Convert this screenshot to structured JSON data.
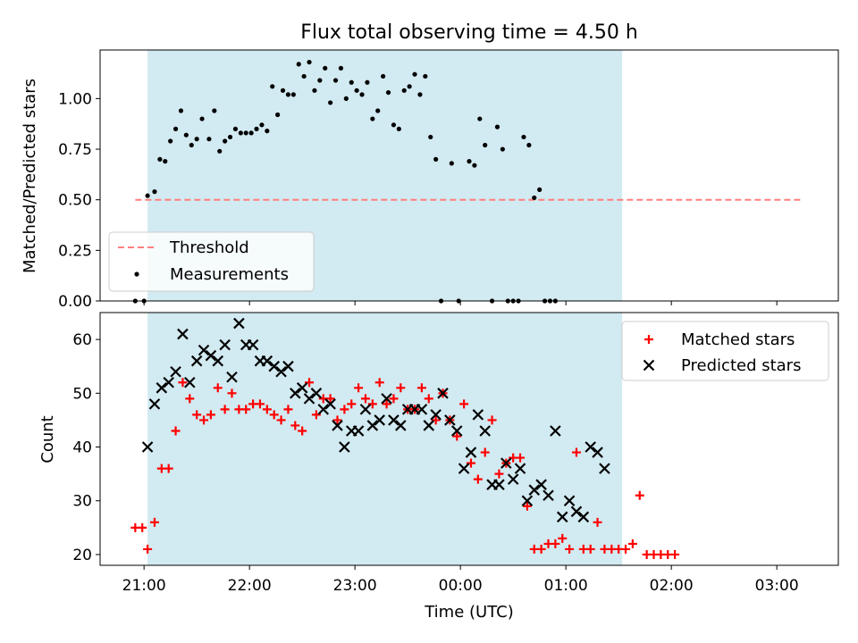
{
  "title": "Flux total observing time = 4.50 h",
  "colors": {
    "band": "#add8e6",
    "threshold": "#ff7f7f",
    "measurement": "#000000",
    "matched": "#ff0000",
    "predicted": "#000000"
  },
  "chart_data": [
    {
      "type": "scatter",
      "ylabel": "Matched/Predicted stars",
      "ylim": [
        0,
        1.24
      ],
      "yticks": [
        0.0,
        0.25,
        0.5,
        0.75,
        1.0
      ],
      "ytick_labels": [
        "0.00",
        "0.25",
        "0.50",
        "0.75",
        "1.00"
      ],
      "xlim": [
        "20:35",
        "03:35"
      ],
      "shaded_interval": [
        "21:02",
        "01:32"
      ],
      "legend_position": "lower-left",
      "threshold": {
        "name": "Threshold",
        "y": 0.5,
        "x": [
          "20:55",
          "03:15"
        ],
        "style": "dashed"
      },
      "series": [
        {
          "name": "Measurements",
          "points": [
            [
              "20:55",
              0.0
            ],
            [
              "21:00",
              0.0
            ],
            [
              "21:02",
              0.52
            ],
            [
              "21:06",
              0.54
            ],
            [
              "21:09",
              0.7
            ],
            [
              "21:12",
              0.69
            ],
            [
              "21:15",
              0.79
            ],
            [
              "21:18",
              0.85
            ],
            [
              "21:21",
              0.94
            ],
            [
              "21:24",
              0.82
            ],
            [
              "21:27",
              0.77
            ],
            [
              "21:30",
              0.8
            ],
            [
              "21:33",
              0.9
            ],
            [
              "21:37",
              0.8
            ],
            [
              "21:40",
              0.94
            ],
            [
              "21:43",
              0.74
            ],
            [
              "21:46",
              0.79
            ],
            [
              "21:49",
              0.81
            ],
            [
              "21:52",
              0.85
            ],
            [
              "21:55",
              0.83
            ],
            [
              "21:58",
              0.83
            ],
            [
              "22:01",
              0.83
            ],
            [
              "22:04",
              0.85
            ],
            [
              "22:07",
              0.87
            ],
            [
              "22:10",
              0.84
            ],
            [
              "22:13",
              1.06
            ],
            [
              "22:16",
              0.92
            ],
            [
              "22:19",
              1.04
            ],
            [
              "22:22",
              1.02
            ],
            [
              "22:25",
              1.02
            ],
            [
              "22:28",
              1.17
            ],
            [
              "22:31",
              1.11
            ],
            [
              "22:34",
              1.18
            ],
            [
              "22:37",
              1.04
            ],
            [
              "22:40",
              1.09
            ],
            [
              "22:43",
              1.15
            ],
            [
              "22:46",
              0.98
            ],
            [
              "22:49",
              1.09
            ],
            [
              "22:52",
              1.15
            ],
            [
              "22:55",
              1.0
            ],
            [
              "22:58",
              1.08
            ],
            [
              "23:01",
              1.04
            ],
            [
              "23:04",
              1.02
            ],
            [
              "23:07",
              1.08
            ],
            [
              "23:10",
              0.9
            ],
            [
              "23:13",
              0.94
            ],
            [
              "23:16",
              1.11
            ],
            [
              "23:19",
              1.03
            ],
            [
              "23:22",
              0.87
            ],
            [
              "23:25",
              0.85
            ],
            [
              "23:28",
              1.04
            ],
            [
              "23:31",
              1.06
            ],
            [
              "23:34",
              1.12
            ],
            [
              "23:37",
              1.02
            ],
            [
              "23:40",
              1.11
            ],
            [
              "23:43",
              0.81
            ],
            [
              "23:46",
              0.7
            ],
            [
              "23:49",
              0.0
            ],
            [
              "23:55",
              0.68
            ],
            [
              "23:59",
              0.0
            ],
            [
              "00:05",
              0.69
            ],
            [
              "00:08",
              0.67
            ],
            [
              "00:11",
              0.9
            ],
            [
              "00:14",
              0.77
            ],
            [
              "00:18",
              0.0
            ],
            [
              "00:21",
              0.86
            ],
            [
              "00:24",
              0.75
            ],
            [
              "00:27",
              0.0
            ],
            [
              "00:30",
              0.0
            ],
            [
              "00:33",
              0.0
            ],
            [
              "00:36",
              0.81
            ],
            [
              "00:39",
              0.77
            ],
            [
              "00:42",
              0.51
            ],
            [
              "00:45",
              0.55
            ],
            [
              "00:48",
              0.0
            ],
            [
              "00:51",
              0.0
            ],
            [
              "00:54",
              0.0
            ]
          ]
        }
      ]
    },
    {
      "type": "scatter",
      "xlabel": "Time (UTC)",
      "ylabel": "Count",
      "ylim": [
        18,
        65
      ],
      "yticks": [
        20,
        30,
        40,
        50,
        60
      ],
      "ytick_labels": [
        "20",
        "30",
        "40",
        "50",
        "60"
      ],
      "xlim": [
        "20:35",
        "03:35"
      ],
      "xticks": [
        "21:00",
        "22:00",
        "23:00",
        "00:00",
        "01:00",
        "02:00",
        "03:00"
      ],
      "shaded_interval": [
        "21:02",
        "01:32"
      ],
      "legend_position": "top-right",
      "series": [
        {
          "name": "Matched stars",
          "marker": "plus",
          "points": [
            [
              "20:55",
              25
            ],
            [
              "20:59",
              25
            ],
            [
              "21:02",
              21
            ],
            [
              "21:06",
              26
            ],
            [
              "21:10",
              36
            ],
            [
              "21:14",
              36
            ],
            [
              "21:18",
              43
            ],
            [
              "21:22",
              52
            ],
            [
              "21:26",
              49
            ],
            [
              "21:30",
              46
            ],
            [
              "21:34",
              45
            ],
            [
              "21:38",
              46
            ],
            [
              "21:42",
              51
            ],
            [
              "21:46",
              47
            ],
            [
              "21:50",
              50
            ],
            [
              "21:54",
              47
            ],
            [
              "21:58",
              47
            ],
            [
              "22:02",
              48
            ],
            [
              "22:06",
              48
            ],
            [
              "22:10",
              47
            ],
            [
              "22:14",
              46
            ],
            [
              "22:18",
              45
            ],
            [
              "22:22",
              47
            ],
            [
              "22:26",
              44
            ],
            [
              "22:30",
              43
            ],
            [
              "22:34",
              52
            ],
            [
              "22:38",
              46
            ],
            [
              "22:42",
              49
            ],
            [
              "22:46",
              49
            ],
            [
              "22:50",
              45
            ],
            [
              "22:54",
              47
            ],
            [
              "22:58",
              48
            ],
            [
              "23:02",
              51
            ],
            [
              "23:06",
              49
            ],
            [
              "23:10",
              48
            ],
            [
              "23:14",
              52
            ],
            [
              "23:18",
              48
            ],
            [
              "23:22",
              49
            ],
            [
              "23:26",
              51
            ],
            [
              "23:30",
              47
            ],
            [
              "23:34",
              47
            ],
            [
              "23:38",
              51
            ],
            [
              "23:42",
              49
            ],
            [
              "23:46",
              45
            ],
            [
              "23:50",
              50
            ],
            [
              "23:54",
              45
            ],
            [
              "23:58",
              42
            ],
            [
              "00:02",
              48
            ],
            [
              "00:06",
              37
            ],
            [
              "00:10",
              34
            ],
            [
              "00:14",
              39
            ],
            [
              "00:18",
              45
            ],
            [
              "00:22",
              35
            ],
            [
              "00:26",
              37
            ],
            [
              "00:30",
              38
            ],
            [
              "00:34",
              38
            ],
            [
              "00:38",
              29
            ],
            [
              "00:42",
              21
            ],
            [
              "00:46",
              21
            ],
            [
              "00:50",
              22
            ],
            [
              "00:54",
              22
            ],
            [
              "00:58",
              23
            ],
            [
              "01:02",
              21
            ],
            [
              "01:06",
              39
            ],
            [
              "01:10",
              21
            ],
            [
              "01:14",
              21
            ],
            [
              "01:18",
              26
            ],
            [
              "01:22",
              21
            ],
            [
              "01:26",
              21
            ],
            [
              "01:30",
              21
            ],
            [
              "01:34",
              21
            ],
            [
              "01:38",
              22
            ],
            [
              "01:42",
              31
            ],
            [
              "01:46",
              20
            ],
            [
              "01:50",
              20
            ],
            [
              "01:54",
              20
            ],
            [
              "01:58",
              20
            ],
            [
              "02:02",
              20
            ]
          ]
        },
        {
          "name": "Predicted stars",
          "marker": "x",
          "points": [
            [
              "21:02",
              40
            ],
            [
              "21:06",
              48
            ],
            [
              "21:10",
              51
            ],
            [
              "21:14",
              52
            ],
            [
              "21:18",
              54
            ],
            [
              "21:22",
              61
            ],
            [
              "21:26",
              52
            ],
            [
              "21:30",
              56
            ],
            [
              "21:34",
              58
            ],
            [
              "21:38",
              57
            ],
            [
              "21:42",
              56
            ],
            [
              "21:46",
              59
            ],
            [
              "21:50",
              53
            ],
            [
              "21:54",
              63
            ],
            [
              "21:58",
              59
            ],
            [
              "22:02",
              59
            ],
            [
              "22:06",
              56
            ],
            [
              "22:10",
              56
            ],
            [
              "22:14",
              55
            ],
            [
              "22:18",
              54
            ],
            [
              "22:22",
              55
            ],
            [
              "22:26",
              50
            ],
            [
              "22:30",
              51
            ],
            [
              "22:34",
              49
            ],
            [
              "22:38",
              50
            ],
            [
              "22:42",
              47
            ],
            [
              "22:46",
              48
            ],
            [
              "22:50",
              44
            ],
            [
              "22:54",
              40
            ],
            [
              "22:58",
              43
            ],
            [
              "23:02",
              43
            ],
            [
              "23:06",
              47
            ],
            [
              "23:10",
              44
            ],
            [
              "23:14",
              45
            ],
            [
              "23:18",
              49
            ],
            [
              "23:22",
              45
            ],
            [
              "23:26",
              44
            ],
            [
              "23:30",
              47
            ],
            [
              "23:34",
              47
            ],
            [
              "23:38",
              47
            ],
            [
              "23:42",
              44
            ],
            [
              "23:46",
              46
            ],
            [
              "23:50",
              50
            ],
            [
              "23:54",
              45
            ],
            [
              "23:58",
              43
            ],
            [
              "00:02",
              36
            ],
            [
              "00:06",
              39
            ],
            [
              "00:10",
              46
            ],
            [
              "00:14",
              43
            ],
            [
              "00:18",
              33
            ],
            [
              "00:22",
              33
            ],
            [
              "00:26",
              37
            ],
            [
              "00:30",
              34
            ],
            [
              "00:34",
              36
            ],
            [
              "00:38",
              30
            ],
            [
              "00:42",
              32
            ],
            [
              "00:46",
              33
            ],
            [
              "00:50",
              31
            ],
            [
              "00:54",
              43
            ],
            [
              "00:58",
              27
            ],
            [
              "01:02",
              30
            ],
            [
              "01:06",
              28
            ],
            [
              "01:10",
              27
            ],
            [
              "01:14",
              40
            ],
            [
              "01:18",
              39
            ],
            [
              "01:22",
              36
            ]
          ]
        }
      ]
    }
  ]
}
